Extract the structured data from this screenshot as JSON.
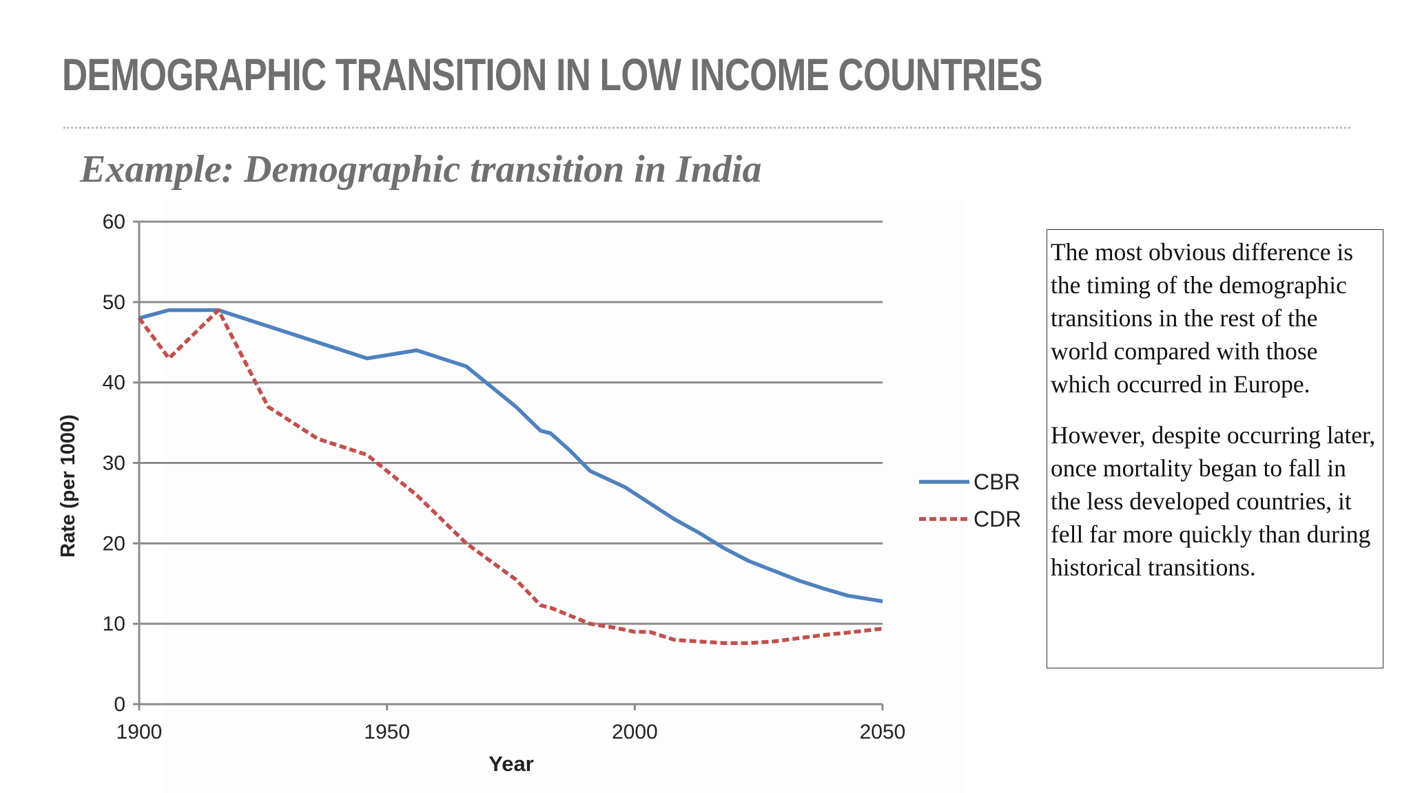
{
  "slide": {
    "title": "DEMOGRAPHIC TRANSITION IN LOW INCOME COUNTRIES",
    "subtitle": "Example: Demographic transition in India"
  },
  "text_box": {
    "paragraphs": [
      "The most obvious difference is the timing of the demographic transitions in the rest of the world compared with those which occurred in Europe.",
      "However, despite occurring later, once mortality began to fall in the less developed countries, it fell far more quickly than during historical transitions."
    ]
  },
  "chart_data": {
    "type": "line",
    "title": "",
    "xlabel": "Year",
    "ylabel": "Rate (per 1000)",
    "xlim": [
      1900,
      2050
    ],
    "ylim": [
      0,
      60
    ],
    "xticks": [
      1900,
      1950,
      2000,
      2050
    ],
    "yticks": [
      0,
      10,
      20,
      30,
      40,
      50,
      60
    ],
    "grid": "horizontal",
    "legend": "right",
    "series": [
      {
        "name": "CBR",
        "color": "#4f81bd",
        "style": "solid",
        "points": [
          [
            1900,
            48
          ],
          [
            1906,
            49
          ],
          [
            1916,
            49
          ],
          [
            1926,
            47
          ],
          [
            1936,
            45
          ],
          [
            1946,
            43
          ],
          [
            1956,
            44
          ],
          [
            1966,
            42
          ],
          [
            1976,
            37
          ],
          [
            1981,
            34
          ],
          [
            1983,
            33.7
          ],
          [
            1987,
            31.5
          ],
          [
            1991,
            29
          ],
          [
            1998,
            27
          ],
          [
            2003,
            25
          ],
          [
            2008,
            23
          ],
          [
            2013,
            21.3
          ],
          [
            2018,
            19.4
          ],
          [
            2023,
            17.8
          ],
          [
            2028,
            16.6
          ],
          [
            2033,
            15.4
          ],
          [
            2038,
            14.4
          ],
          [
            2043,
            13.5
          ],
          [
            2050,
            12.8
          ]
        ]
      },
      {
        "name": "CDR",
        "color": "#c0504d",
        "style": "dashed",
        "points": [
          [
            1900,
            48
          ],
          [
            1906,
            43
          ],
          [
            1916,
            49
          ],
          [
            1926,
            37
          ],
          [
            1936,
            33
          ],
          [
            1946,
            31
          ],
          [
            1956,
            26
          ],
          [
            1966,
            20
          ],
          [
            1976,
            15.5
          ],
          [
            1981,
            12.3
          ],
          [
            1983,
            12
          ],
          [
            1987,
            11
          ],
          [
            1991,
            10
          ],
          [
            1996,
            9.5
          ],
          [
            2000,
            9
          ],
          [
            2003,
            9
          ],
          [
            2008,
            8
          ],
          [
            2013,
            7.8
          ],
          [
            2018,
            7.6
          ],
          [
            2023,
            7.6
          ],
          [
            2028,
            7.8
          ],
          [
            2033,
            8.2
          ],
          [
            2038,
            8.6
          ],
          [
            2043,
            8.9
          ],
          [
            2050,
            9.4
          ]
        ]
      }
    ]
  }
}
